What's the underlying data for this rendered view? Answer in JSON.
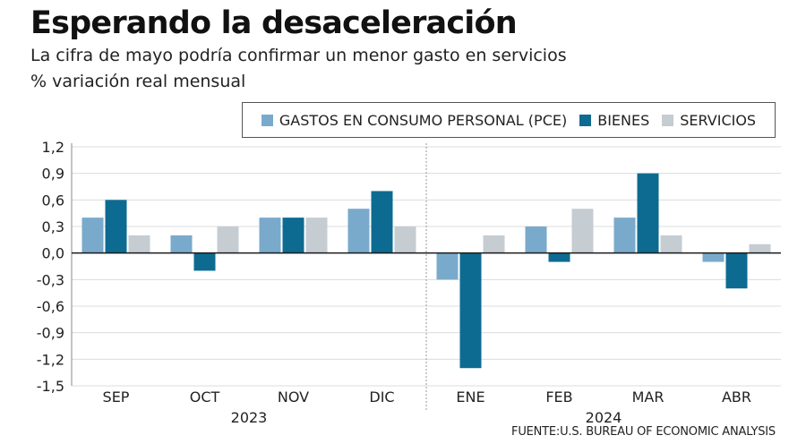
{
  "chart_data": {
    "type": "bar",
    "title": "Esperando la desaceleración",
    "subtitle": "La cifra de mayo podría confirmar un menor gasto en servicios",
    "ylabel": "% variación real mensual",
    "categories": [
      "SEP",
      "OCT",
      "NOV",
      "DIC",
      "ENE",
      "FEB",
      "MAR",
      "ABR"
    ],
    "year_groups": [
      {
        "label": "2023",
        "categories": [
          "SEP",
          "OCT",
          "NOV",
          "DIC"
        ]
      },
      {
        "label": "2024",
        "categories": [
          "ENE",
          "FEB",
          "MAR",
          "ABR"
        ]
      }
    ],
    "series": [
      {
        "name": "GASTOS EN CONSUMO PERSONAL (PCE)",
        "color": "#7aaacb",
        "values": [
          0.4,
          0.2,
          0.4,
          0.5,
          -0.3,
          0.3,
          0.4,
          -0.1
        ]
      },
      {
        "name": "BIENES",
        "color": "#0d6b91",
        "values": [
          0.6,
          -0.2,
          0.4,
          0.7,
          -1.3,
          -0.1,
          0.9,
          -0.4
        ]
      },
      {
        "name": "SERVICIOS",
        "color": "#c5ccd2",
        "values": [
          0.2,
          0.3,
          0.4,
          0.3,
          0.2,
          0.5,
          0.2,
          0.1
        ]
      }
    ],
    "ylim": [
      -1.5,
      1.2
    ],
    "yticks": [
      "1,2",
      "0,9",
      "0,6",
      "0,3",
      "0,0",
      "-0,3",
      "-0,6",
      "-0,9",
      "-1,2",
      "-1,5"
    ],
    "ytick_values": [
      1.2,
      0.9,
      0.6,
      0.3,
      0.0,
      -0.3,
      -0.6,
      -0.9,
      -1.2,
      -1.5
    ],
    "grid": true,
    "legend_position": "top-right",
    "source": "FUENTE:U.S. BUREAU OF ECONOMIC ANALYSIS"
  }
}
